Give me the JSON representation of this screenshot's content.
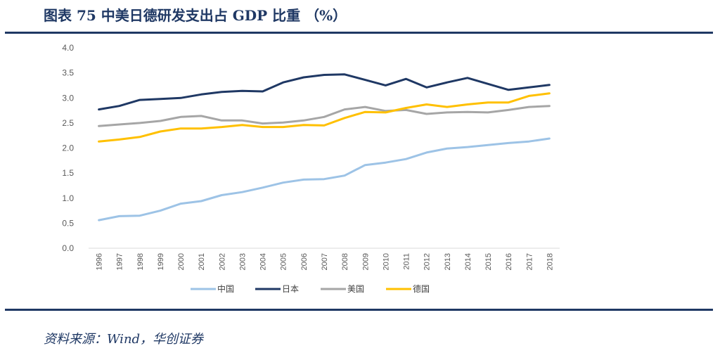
{
  "header": {
    "title": "图表 75   中美日德研发支出占 GDP 比重 （%）"
  },
  "footer": {
    "source": "资料来源：Wind，华创证券"
  },
  "chart_data": {
    "type": "line",
    "title": "中美日德研发支出占 GDP 比重 （%）",
    "xlabel": "",
    "ylabel": "",
    "ylim": [
      0,
      4
    ],
    "yticks": [
      "0.0",
      "0.5",
      "1.0",
      "1.5",
      "2.0",
      "2.5",
      "3.0",
      "3.5",
      "4.0"
    ],
    "categories": [
      "1996",
      "1997",
      "1998",
      "1999",
      "2000",
      "2001",
      "2002",
      "2003",
      "2004",
      "2005",
      "2006",
      "2007",
      "2008",
      "2009",
      "2010",
      "2011",
      "2012",
      "2013",
      "2014",
      "2015",
      "2016",
      "2017",
      "2018"
    ],
    "legend_position": "bottom",
    "series": [
      {
        "name": "中国",
        "color": "#9dc3e6",
        "values": [
          0.56,
          0.64,
          0.65,
          0.75,
          0.89,
          0.94,
          1.06,
          1.12,
          1.21,
          1.31,
          1.37,
          1.38,
          1.45,
          1.66,
          1.71,
          1.78,
          1.91,
          1.99,
          2.02,
          2.06,
          2.1,
          2.13,
          2.19
        ]
      },
      {
        "name": "日本",
        "color": "#1f3864",
        "values": [
          2.77,
          2.84,
          2.96,
          2.98,
          3.0,
          3.07,
          3.12,
          3.14,
          3.13,
          3.31,
          3.41,
          3.46,
          3.47,
          3.36,
          3.25,
          3.38,
          3.21,
          3.31,
          3.4,
          3.28,
          3.16,
          3.21,
          3.26
        ]
      },
      {
        "name": "美国",
        "color": "#a6a6a6",
        "values": [
          2.44,
          2.47,
          2.5,
          2.54,
          2.62,
          2.64,
          2.55,
          2.55,
          2.49,
          2.51,
          2.55,
          2.62,
          2.77,
          2.82,
          2.74,
          2.76,
          2.68,
          2.71,
          2.72,
          2.71,
          2.76,
          2.82,
          2.84
        ]
      },
      {
        "name": "德国",
        "color": "#ffc000",
        "values": [
          2.13,
          2.17,
          2.22,
          2.33,
          2.39,
          2.39,
          2.42,
          2.46,
          2.42,
          2.42,
          2.46,
          2.45,
          2.6,
          2.72,
          2.71,
          2.8,
          2.87,
          2.82,
          2.87,
          2.91,
          2.91,
          3.04,
          3.09
        ]
      }
    ]
  }
}
